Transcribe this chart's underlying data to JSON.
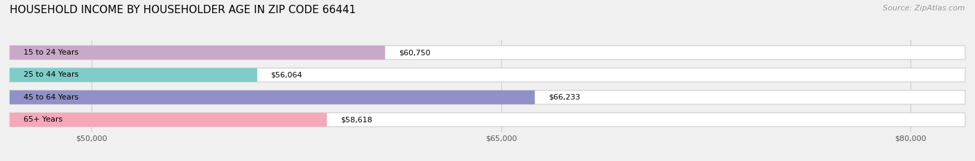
{
  "title": "HOUSEHOLD INCOME BY HOUSEHOLDER AGE IN ZIP CODE 66441",
  "source": "Source: ZipAtlas.com",
  "categories": [
    "15 to 24 Years",
    "25 to 44 Years",
    "45 to 64 Years",
    "65+ Years"
  ],
  "values": [
    60750,
    56064,
    66233,
    58618
  ],
  "colors": [
    "#c9a8c8",
    "#7eccc8",
    "#9191c8",
    "#f4a8b8"
  ],
  "background_color": "#f0f0f0",
  "xlim_min": 47000,
  "xlim_max": 82000,
  "xticks": [
    50000,
    65000,
    80000
  ],
  "xtick_labels": [
    "$50,000",
    "$65,000",
    "$80,000"
  ],
  "value_labels": [
    "$60,750",
    "$56,064",
    "$66,233",
    "$58,618"
  ],
  "title_fontsize": 11,
  "source_fontsize": 8,
  "label_fontsize": 8,
  "value_fontsize": 8
}
